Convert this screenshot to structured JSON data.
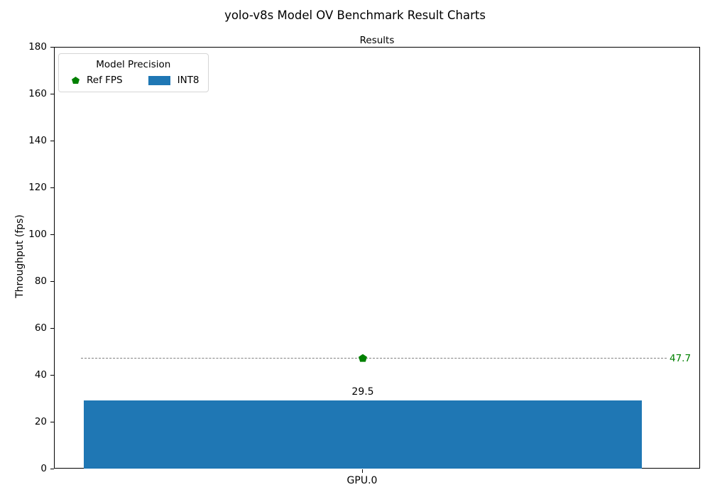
{
  "chart_data": {
    "type": "bar",
    "title": "yolo-v8s Model OV Benchmark Result Charts",
    "subtitle": "Results",
    "xlabel": "",
    "ylabel": "Throughput (fps)",
    "ylim": [
      0,
      180
    ],
    "yticks": [
      0,
      20,
      40,
      60,
      80,
      100,
      120,
      140,
      160,
      180
    ],
    "categories": [
      "GPU.0"
    ],
    "series": [
      {
        "name": "INT8",
        "type": "bar",
        "values": [
          29.5
        ],
        "color": "#1f77b4"
      }
    ],
    "bar_value_labels": [
      "29.5"
    ],
    "ref_line": {
      "name": "Ref FPS",
      "value": 47.7,
      "label": "47.7",
      "line_color": "#808080",
      "line_style": "dashed",
      "marker": "pentagon",
      "marker_color": "#008000",
      "label_color": "#008000"
    },
    "legend": {
      "title": "Model Precision",
      "position": "upper left",
      "items": [
        {
          "label": "Ref FPS",
          "swatch": "pentagon-marker-icon",
          "color": "#008000"
        },
        {
          "label": "INT8",
          "swatch": "rect-patch-icon",
          "color": "#1f77b4"
        }
      ]
    },
    "grid": false,
    "colors": {
      "bar": "#1f77b4",
      "ref_green": "#008000",
      "ref_gray": "#808080",
      "spine": "#000000",
      "background": "#ffffff"
    }
  }
}
